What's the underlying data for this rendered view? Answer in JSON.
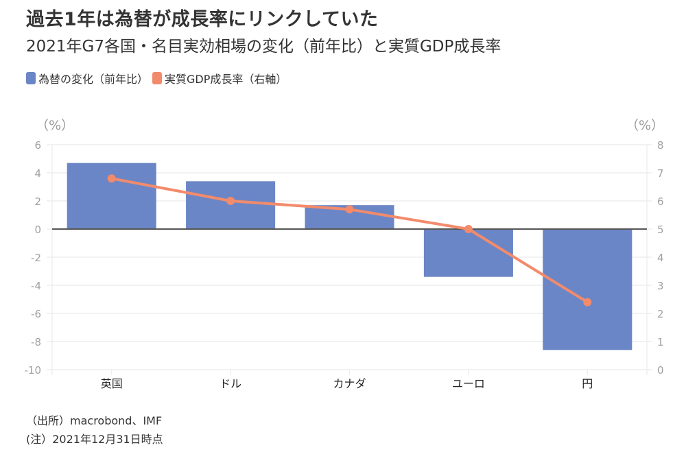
{
  "header": {
    "title": "過去1年は為替が成長率にリンクしていた",
    "subtitle": "2021年G7各国・名目実効相場の変化（前年比）と実質GDP成長率"
  },
  "legend": [
    {
      "label": "為替の変化（前年比）",
      "color": "#6b86c6"
    },
    {
      "label": "実質GDP成長率（右軸）",
      "color": "#f28b6c"
    }
  ],
  "axis_units": {
    "left": "（%）",
    "right": "（%）"
  },
  "notes": {
    "source": "（出所）macrobond、IMF",
    "note": "(注）2021年12月31日時点"
  },
  "chart_data": {
    "type": "bar",
    "title": "過去1年は為替が成長率にリンクしていた",
    "subtitle": "2021年G7各国・名目実効相場の変化（前年比）と実質GDP成長率",
    "categories": [
      "英国",
      "ドル",
      "カナダ",
      "ユーロ",
      "円"
    ],
    "series": [
      {
        "name": "為替の変化（前年比）",
        "type": "bar",
        "axis": "left",
        "color": "#6b86c6",
        "values": [
          4.7,
          3.4,
          1.7,
          -3.4,
          -8.6
        ]
      },
      {
        "name": "実質GDP成長率（右軸）",
        "type": "line",
        "axis": "right",
        "color": "#f28b6c",
        "values": [
          6.8,
          6.0,
          5.7,
          5.0,
          2.4
        ]
      }
    ],
    "xlabel": "",
    "ylabel": "（%）",
    "y2label": "（%）",
    "ylim": [
      -10,
      6
    ],
    "y2lim": [
      0,
      8
    ],
    "yticks": [
      6,
      4,
      2,
      0,
      -2,
      -4,
      -6,
      -8,
      -10
    ],
    "y2ticks": [
      8,
      7,
      6,
      5,
      4,
      3,
      2,
      1,
      0
    ],
    "grid": true,
    "legend_position": "top-left"
  }
}
